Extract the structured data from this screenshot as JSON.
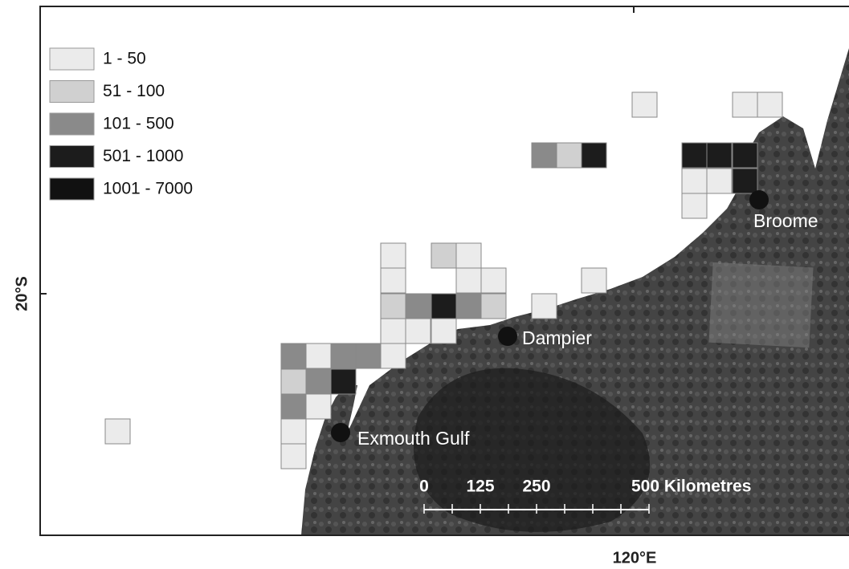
{
  "legend": {
    "items": [
      "1 - 50",
      "51 - 100",
      "101 - 500",
      "501 - 1000",
      "1001 - 7000"
    ],
    "colors": [
      "#ebebeb",
      "#d0d0d0",
      "#8a8a8a",
      "#1c1c1c",
      "#111111"
    ]
  },
  "places": [
    "Broome",
    "Dampier",
    "Exmouth Gulf"
  ],
  "scale_bar": {
    "labels": [
      "0",
      "125",
      "250",
      "500 Kilometres"
    ]
  },
  "axes": {
    "latitude": "20°S",
    "longitude": "120°E"
  }
}
